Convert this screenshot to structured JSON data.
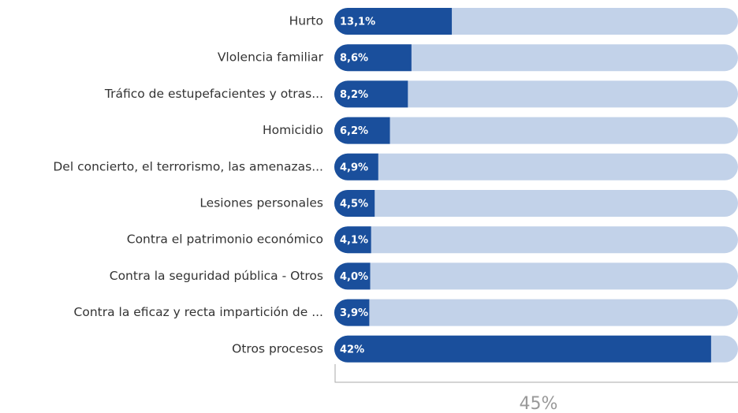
{
  "chart_data": {
    "type": "bar",
    "orientation": "horizontal",
    "categories": [
      "Hurto",
      "Vlolencia familiar",
      "Tráfico de estupefacientes y otras...",
      "Homicidio",
      "Del concierto, el terrorismo, las amenazas...",
      "Lesiones personales",
      "Contra el patrimonio económico",
      "Contra la seguridad pública - Otros",
      "Contra la eficaz y recta impartición de ...",
      "Otros procesos"
    ],
    "values": [
      13.1,
      8.6,
      8.2,
      6.2,
      4.9,
      4.5,
      4.1,
      4.0,
      3.9,
      42
    ],
    "value_labels": [
      "13,1%",
      "8,6%",
      "8,2%",
      "6,2%",
      "4,9%",
      "4,5%",
      "4,1%",
      "4,0%",
      "3,9%",
      "42%"
    ],
    "color": "#1a4f9c",
    "track_color": "#c2d2e9",
    "xlim": [
      0,
      45
    ],
    "x_label": "45%"
  }
}
